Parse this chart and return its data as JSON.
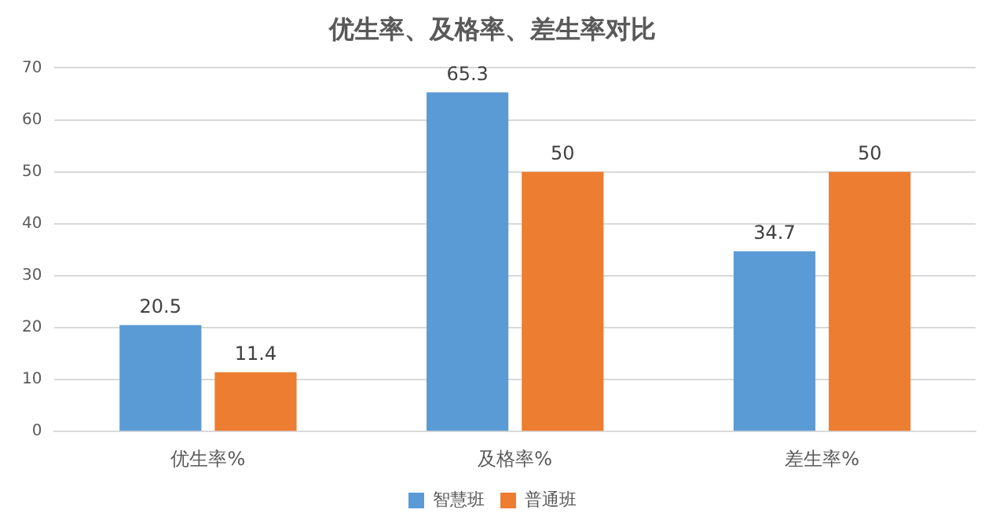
{
  "chart_data": {
    "type": "bar",
    "title": "优生率、及格率、差生率对比",
    "categories": [
      "优生率%",
      "及格率%",
      "差生率%"
    ],
    "series": [
      {
        "name": "智慧班",
        "color": "#5b9bd5",
        "values": [
          20.5,
          65.3,
          34.7
        ]
      },
      {
        "name": "普通班",
        "color": "#ed7d31",
        "values": [
          11.4,
          50,
          50
        ]
      }
    ],
    "ylim": [
      0,
      70
    ],
    "yticks": [
      0,
      10,
      20,
      30,
      40,
      50,
      60,
      70
    ],
    "grid": "y",
    "legend": "bottom",
    "data_labels": true
  }
}
